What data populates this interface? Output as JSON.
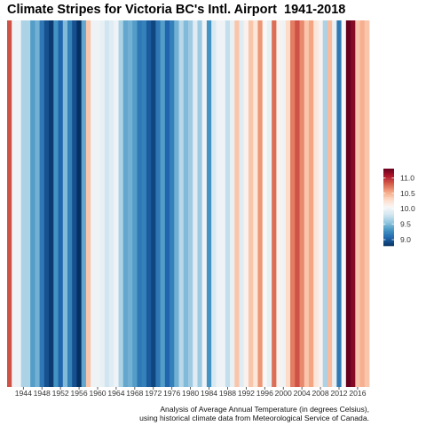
{
  "chart_data": {
    "type": "heatmap",
    "title": "Climate Stripes for Victoria BC's Intl. Airport  1941-2018",
    "xlabel": "",
    "ylabel": "",
    "x": [
      1941,
      1942,
      1943,
      1944,
      1945,
      1946,
      1947,
      1948,
      1949,
      1950,
      1951,
      1952,
      1953,
      1954,
      1955,
      1956,
      1957,
      1958,
      1959,
      1960,
      1961,
      1962,
      1963,
      1964,
      1965,
      1966,
      1967,
      1968,
      1969,
      1970,
      1971,
      1972,
      1973,
      1974,
      1975,
      1976,
      1977,
      1978,
      1979,
      1980,
      1981,
      1982,
      1983,
      1984,
      1985,
      1986,
      1987,
      1988,
      1989,
      1990,
      1991,
      1992,
      1993,
      1994,
      1995,
      1996,
      1997,
      1998,
      1999,
      2000,
      2001,
      2002,
      2003,
      2004,
      2005,
      2006,
      2007,
      2008,
      2009,
      2010,
      2011,
      2012,
      2013,
      2014,
      2015,
      2016,
      2017,
      2018
    ],
    "values": [
      10.85,
      10.0,
      10.0,
      9.65,
      9.65,
      9.35,
      9.45,
      9.15,
      8.95,
      8.85,
      9.3,
      9.05,
      9.5,
      9.2,
      8.95,
      8.8,
      9.4,
      10.4,
      10.0,
      10.0,
      9.95,
      9.8,
      9.9,
      10.0,
      9.65,
      9.4,
      9.45,
      9.35,
      9.15,
      9.2,
      9.0,
      8.9,
      9.15,
      9.35,
      9.05,
      9.2,
      9.45,
      9.7,
      9.5,
      9.6,
      9.9,
      9.6,
      10.0,
      9.3,
      9.85,
      10.0,
      10.0,
      9.75,
      9.95,
      10.4,
      9.9,
      10.1,
      10.4,
      10.2,
      10.6,
      10.05,
      9.95,
      10.75,
      10.1,
      10.0,
      10.3,
      10.7,
      10.85,
      10.65,
      10.4,
      10.55,
      10.2,
      10.1,
      9.65,
      10.45,
      9.95,
      9.15,
      10.05,
      11.3,
      11.2,
      10.4,
      10.5,
      10.4
    ],
    "x_ticks": [
      "1944",
      "1948",
      "1952",
      "1956",
      "1960",
      "1964",
      "1968",
      "1972",
      "1976",
      "1980",
      "1984",
      "1988",
      "1992",
      "1996",
      "2000",
      "2004",
      "2008",
      "2012",
      "2016"
    ],
    "value_range": [
      8.8,
      11.3
    ],
    "colormap": [
      "#053061",
      "#2166ac",
      "#4393c3",
      "#92c5de",
      "#d1e5f0",
      "#f7f7f7",
      "#fddbc7",
      "#f4a582",
      "#d6604d",
      "#b2182b",
      "#67001f"
    ],
    "legend": {
      "position": "right",
      "labels": [
        "11.0",
        "10.5",
        "10.0",
        "9.5",
        "9.0"
      ],
      "values": [
        11.0,
        10.5,
        10.0,
        9.5,
        9.0
      ]
    },
    "grid": false
  },
  "caption": {
    "line1": "Analysis of Average Annual Temperature (in degrees Celsius),",
    "line2": "using historical climate data from Meteorological Service of Canada."
  }
}
